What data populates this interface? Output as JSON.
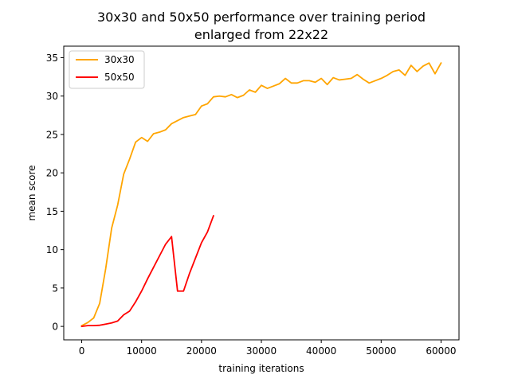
{
  "chart_data": {
    "type": "line",
    "title": "30x30 and 50x50 performance over training period\nenlarged from 22x22",
    "title_lines": [
      "30x30 and 50x50 performance over training period",
      "enlarged from 22x22"
    ],
    "xlabel": "training iterations",
    "ylabel": "mean score",
    "xlim": [
      -3000,
      63000
    ],
    "ylim": [
      -1.75,
      36.5
    ],
    "xticks": [
      0,
      10000,
      20000,
      30000,
      40000,
      50000,
      60000
    ],
    "yticks": [
      0,
      5,
      10,
      15,
      20,
      25,
      30,
      35
    ],
    "grid": false,
    "legend_position": "top-left",
    "series": [
      {
        "name": "30x30",
        "color": "#ffa500",
        "x": [
          0,
          1000,
          2000,
          3000,
          4000,
          5000,
          6000,
          7000,
          8000,
          9000,
          10000,
          11000,
          12000,
          13000,
          14000,
          15000,
          16000,
          17000,
          18000,
          19000,
          20000,
          21000,
          22000,
          23000,
          24000,
          25000,
          26000,
          27000,
          28000,
          29000,
          30000,
          31000,
          32000,
          33000,
          34000,
          35000,
          36000,
          37000,
          38000,
          39000,
          40000,
          41000,
          42000,
          43000,
          44000,
          45000,
          46000,
          47000,
          48000,
          49000,
          50000,
          51000,
          52000,
          53000,
          54000,
          55000,
          56000,
          57000,
          58000,
          59000,
          60000
        ],
        "y": [
          0.1,
          0.5,
          1.1,
          3.0,
          7.5,
          12.8,
          15.8,
          19.8,
          21.8,
          24.0,
          24.6,
          24.1,
          25.1,
          25.3,
          25.6,
          26.4,
          26.8,
          27.2,
          27.4,
          27.6,
          28.7,
          29.0,
          29.9,
          30.0,
          29.9,
          30.2,
          29.8,
          30.1,
          30.8,
          30.5,
          31.4,
          31.0,
          31.3,
          31.6,
          32.3,
          31.7,
          31.7,
          32.0,
          32.0,
          31.8,
          32.3,
          31.5,
          32.4,
          32.1,
          32.2,
          32.3,
          32.8,
          32.2,
          31.7,
          32.0,
          32.3,
          32.7,
          33.2,
          33.4,
          32.7,
          34.0,
          33.2,
          33.9,
          34.3,
          32.9,
          34.3
        ]
      },
      {
        "name": "50x50",
        "color": "#ff0000",
        "x": [
          0,
          1000,
          2000,
          3000,
          4000,
          5000,
          6000,
          7000,
          8000,
          9000,
          10000,
          11000,
          12000,
          13000,
          14000,
          15000,
          16000,
          17000,
          18000,
          19000,
          20000,
          21000,
          22000
        ],
        "y": [
          0.0,
          0.1,
          0.1,
          0.15,
          0.3,
          0.45,
          0.7,
          1.5,
          2.0,
          3.2,
          4.6,
          6.2,
          7.7,
          9.2,
          10.7,
          11.7,
          4.6,
          4.6,
          6.9,
          8.9,
          10.9,
          12.3,
          14.4
        ]
      }
    ]
  }
}
